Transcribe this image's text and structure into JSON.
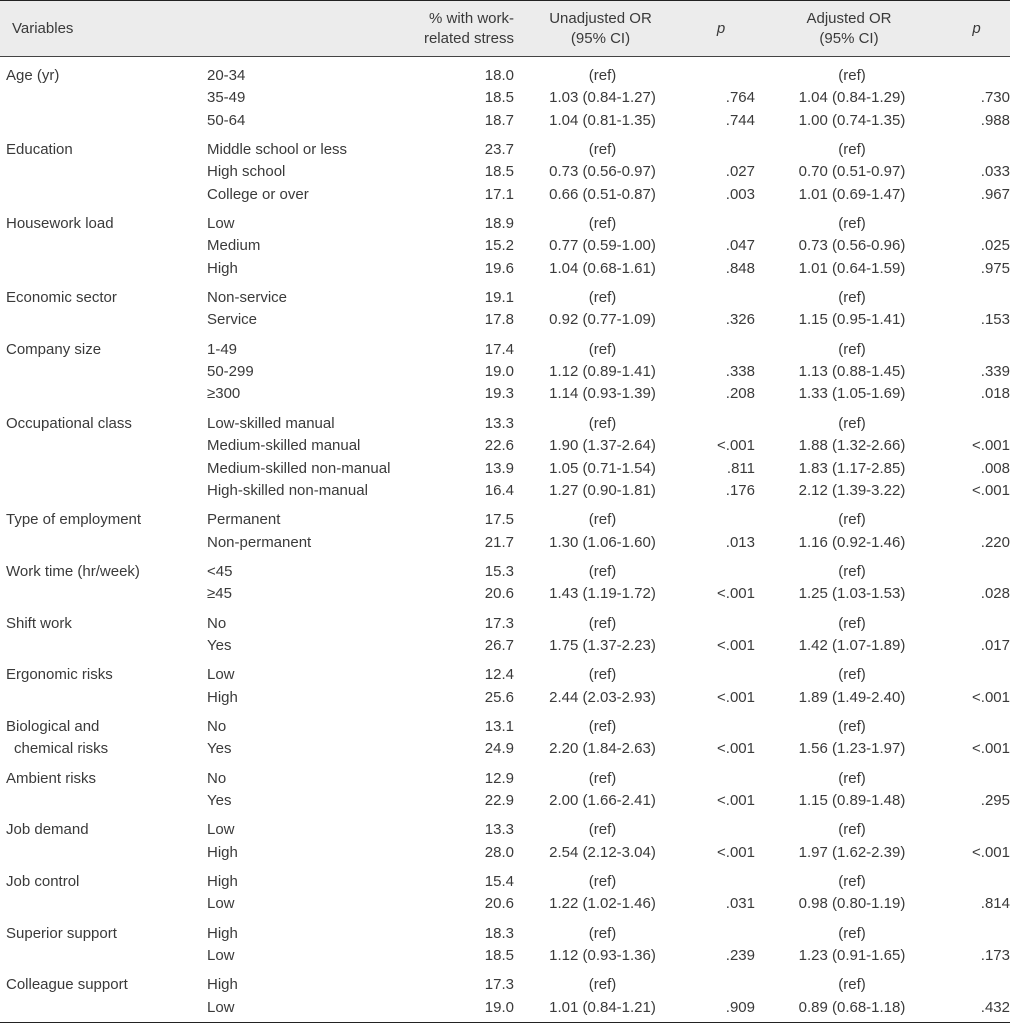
{
  "header": {
    "variables": "Variables",
    "pct_line1": "% with work-",
    "pct_line2": "related stress",
    "uor_line1": "Unadjusted OR",
    "uor_line2": "(95% CI)",
    "p1": "p",
    "aor_line1": "Adjusted OR",
    "aor_line2": "(95% CI)",
    "p2": "p"
  },
  "groups": [
    {
      "variable": [
        "Age (yr)"
      ],
      "rows": [
        {
          "level": "20-34",
          "pct": "18.0",
          "uor": "(ref)",
          "p1": "",
          "aor": "(ref)",
          "p2": ""
        },
        {
          "level": "35-49",
          "pct": "18.5",
          "uor": "1.03 (0.84-1.27)",
          "p1": ".764",
          "aor": "1.04 (0.84-1.29)",
          "p2": ".730"
        },
        {
          "level": "50-64",
          "pct": "18.7",
          "uor": "1.04 (0.81-1.35)",
          "p1": ".744",
          "aor": "1.00 (0.74-1.35)",
          "p2": ".988"
        }
      ]
    },
    {
      "variable": [
        "Education"
      ],
      "rows": [
        {
          "level": "Middle school or less",
          "pct": "23.7",
          "uor": "(ref)",
          "p1": "",
          "aor": "(ref)",
          "p2": ""
        },
        {
          "level": "High school",
          "pct": "18.5",
          "uor": "0.73 (0.56-0.97)",
          "p1": ".027",
          "aor": "0.70 (0.51-0.97)",
          "p2": ".033"
        },
        {
          "level": "College or over",
          "pct": "17.1",
          "uor": "0.66 (0.51-0.87)",
          "p1": ".003",
          "aor": "1.01 (0.69-1.47)",
          "p2": ".967"
        }
      ]
    },
    {
      "variable": [
        "Housework load"
      ],
      "rows": [
        {
          "level": "Low",
          "pct": "18.9",
          "uor": "(ref)",
          "p1": "",
          "aor": "(ref)",
          "p2": ""
        },
        {
          "level": "Medium",
          "pct": "15.2",
          "uor": "0.77 (0.59-1.00)",
          "p1": ".047",
          "aor": "0.73 (0.56-0.96)",
          "p2": ".025"
        },
        {
          "level": "High",
          "pct": "19.6",
          "uor": "1.04 (0.68-1.61)",
          "p1": ".848",
          "aor": "1.01 (0.64-1.59)",
          "p2": ".975"
        }
      ]
    },
    {
      "variable": [
        "Economic sector"
      ],
      "rows": [
        {
          "level": "Non-service",
          "pct": "19.1",
          "uor": "(ref)",
          "p1": "",
          "aor": "(ref)",
          "p2": ""
        },
        {
          "level": "Service",
          "pct": "17.8",
          "uor": "0.92 (0.77-1.09)",
          "p1": ".326",
          "aor": "1.15 (0.95-1.41)",
          "p2": ".153"
        }
      ]
    },
    {
      "variable": [
        "Company size"
      ],
      "rows": [
        {
          "level": "1-49",
          "pct": "17.4",
          "uor": "(ref)",
          "p1": "",
          "aor": "(ref)",
          "p2": ""
        },
        {
          "level": "50-299",
          "pct": "19.0",
          "uor": "1.12 (0.89-1.41)",
          "p1": ".338",
          "aor": "1.13 (0.88-1.45)",
          "p2": ".339"
        },
        {
          "level": "≥300",
          "pct": "19.3",
          "uor": "1.14 (0.93-1.39)",
          "p1": ".208",
          "aor": "1.33 (1.05-1.69)",
          "p2": ".018"
        }
      ]
    },
    {
      "variable": [
        "Occupational class"
      ],
      "rows": [
        {
          "level": "Low-skilled manual",
          "pct": "13.3",
          "uor": "(ref)",
          "p1": "",
          "aor": "(ref)",
          "p2": ""
        },
        {
          "level": "Medium-skilled manual",
          "pct": "22.6",
          "uor": "1.90 (1.37-2.64)",
          "p1": "<.001",
          "aor": "1.88 (1.32-2.66)",
          "p2": "<.001"
        },
        {
          "level": "Medium-skilled non-manual",
          "pct": "13.9",
          "uor": "1.05 (0.71-1.54)",
          "p1": ".811",
          "aor": "1.83 (1.17-2.85)",
          "p2": ".008"
        },
        {
          "level": "High-skilled non-manual",
          "pct": "16.4",
          "uor": "1.27 (0.90-1.81)",
          "p1": ".176",
          "aor": "2.12 (1.39-3.22)",
          "p2": "<.001"
        }
      ]
    },
    {
      "variable": [
        "Type of employment"
      ],
      "rows": [
        {
          "level": "Permanent",
          "pct": "17.5",
          "uor": "(ref)",
          "p1": "",
          "aor": "(ref)",
          "p2": ""
        },
        {
          "level": "Non-permanent",
          "pct": "21.7",
          "uor": "1.30 (1.06-1.60)",
          "p1": ".013",
          "aor": "1.16 (0.92-1.46)",
          "p2": ".220"
        }
      ]
    },
    {
      "variable": [
        "Work time (hr/week)"
      ],
      "rows": [
        {
          "level": "<45",
          "pct": "15.3",
          "uor": "(ref)",
          "p1": "",
          "aor": "(ref)",
          "p2": ""
        },
        {
          "level": "≥45",
          "pct": "20.6",
          "uor": "1.43 (1.19-1.72)",
          "p1": "<.001",
          "aor": "1.25 (1.03-1.53)",
          "p2": ".028"
        }
      ]
    },
    {
      "variable": [
        "Shift work"
      ],
      "rows": [
        {
          "level": "No",
          "pct": "17.3",
          "uor": "(ref)",
          "p1": "",
          "aor": "(ref)",
          "p2": ""
        },
        {
          "level": "Yes",
          "pct": "26.7",
          "uor": "1.75 (1.37-2.23)",
          "p1": "<.001",
          "aor": "1.42 (1.07-1.89)",
          "p2": ".017"
        }
      ]
    },
    {
      "variable": [
        "Ergonomic risks"
      ],
      "rows": [
        {
          "level": "Low",
          "pct": "12.4",
          "uor": "(ref)",
          "p1": "",
          "aor": "(ref)",
          "p2": ""
        },
        {
          "level": "High",
          "pct": "25.6",
          "uor": "2.44 (2.03-2.93)",
          "p1": "<.001",
          "aor": "1.89 (1.49-2.40)",
          "p2": "<.001"
        }
      ]
    },
    {
      "variable": [
        "Biological and",
        "chemical risks"
      ],
      "rows": [
        {
          "level": "No",
          "pct": "13.1",
          "uor": "(ref)",
          "p1": "",
          "aor": "(ref)",
          "p2": ""
        },
        {
          "level": "Yes",
          "pct": "24.9",
          "uor": "2.20 (1.84-2.63)",
          "p1": "<.001",
          "aor": "1.56 (1.23-1.97)",
          "p2": "<.001"
        }
      ]
    },
    {
      "variable": [
        "Ambient risks"
      ],
      "rows": [
        {
          "level": "No",
          "pct": "12.9",
          "uor": "(ref)",
          "p1": "",
          "aor": "(ref)",
          "p2": ""
        },
        {
          "level": "Yes",
          "pct": "22.9",
          "uor": "2.00 (1.66-2.41)",
          "p1": "<.001",
          "aor": "1.15 (0.89-1.48)",
          "p2": ".295"
        }
      ]
    },
    {
      "variable": [
        "Job demand"
      ],
      "rows": [
        {
          "level": "Low",
          "pct": "13.3",
          "uor": "(ref)",
          "p1": "",
          "aor": "(ref)",
          "p2": ""
        },
        {
          "level": "High",
          "pct": "28.0",
          "uor": "2.54 (2.12-3.04)",
          "p1": "<.001",
          "aor": "1.97 (1.62-2.39)",
          "p2": "<.001"
        }
      ]
    },
    {
      "variable": [
        "Job control"
      ],
      "rows": [
        {
          "level": "High",
          "pct": "15.4",
          "uor": "(ref)",
          "p1": "",
          "aor": "(ref)",
          "p2": ""
        },
        {
          "level": "Low",
          "pct": "20.6",
          "uor": "1.22 (1.02-1.46)",
          "p1": ".031",
          "aor": "0.98 (0.80-1.19)",
          "p2": ".814"
        }
      ]
    },
    {
      "variable": [
        "Superior support"
      ],
      "rows": [
        {
          "level": "High",
          "pct": "18.3",
          "uor": "(ref)",
          "p1": "",
          "aor": "(ref)",
          "p2": ""
        },
        {
          "level": "Low",
          "pct": "18.5",
          "uor": "1.12 (0.93-1.36)",
          "p1": ".239",
          "aor": "1.23 (0.91-1.65)",
          "p2": ".173"
        }
      ]
    },
    {
      "variable": [
        "Colleague support"
      ],
      "rows": [
        {
          "level": "High",
          "pct": "17.3",
          "uor": "(ref)",
          "p1": "",
          "aor": "(ref)",
          "p2": ""
        },
        {
          "level": "Low",
          "pct": "19.0",
          "uor": "1.01 (0.84-1.21)",
          "p1": ".909",
          "aor": "0.89 (0.68-1.18)",
          "p2": ".432"
        }
      ]
    }
  ]
}
